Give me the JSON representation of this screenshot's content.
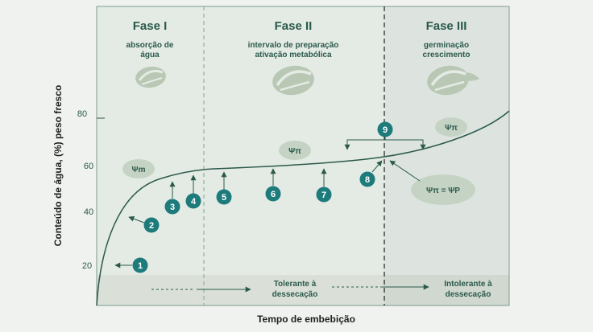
{
  "phases": [
    {
      "title": "Fase I",
      "desc": [
        "absorção de",
        "água"
      ]
    },
    {
      "title": "Fase II",
      "desc": [
        "intervalo de preparação",
        "ativação metabólica"
      ]
    },
    {
      "title": "Fase III",
      "desc": [
        "germinação",
        "crescimento"
      ]
    }
  ],
  "y_axis": {
    "label": "Conteúdo de água, (%) peso fresco",
    "ticks": [
      "80",
      "60",
      "40",
      "20"
    ]
  },
  "x_axis": {
    "label": "Tempo de embebição"
  },
  "potentials": {
    "psi_m": "Ψm",
    "psi_pi_phase2": "Ψπ",
    "psi_pi_phase3": "Ψπ",
    "equilibrium": "Ψπ = ΨP"
  },
  "markers": [
    "1",
    "2",
    "3",
    "4",
    "5",
    "6",
    "7",
    "8",
    "9"
  ],
  "tolerance": {
    "tolerant": [
      "Tolerante à",
      "dessecação"
    ],
    "intolerant": [
      "Intolerante à",
      "dessecação"
    ]
  },
  "colors": {
    "curve": "#2b5a4c",
    "marker": "#1d7b7b",
    "plot_bg": "#e4ebe5",
    "phase3_bg": "#dde4df",
    "band": "#dae0d8",
    "seed": "#b8c8b4"
  }
}
